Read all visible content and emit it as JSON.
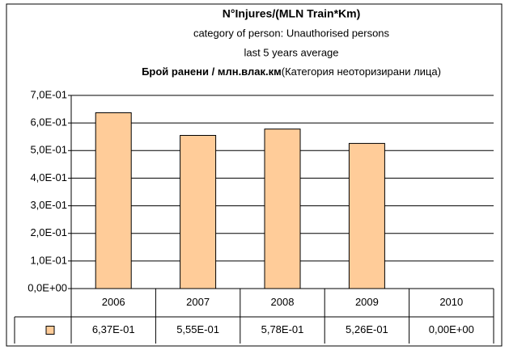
{
  "chart_data": {
    "type": "bar",
    "title": [
      "N°Injures/(MLN Train*Km)",
      "category of person: Unauthorised persons",
      "last 5 years average"
    ],
    "subtitle_bold": "Брой ранени / млн.влак.км",
    "subtitle": "(Категория неоторизирани лица)",
    "categories": [
      "2006",
      "2007",
      "2008",
      "2009",
      "2010"
    ],
    "values": [
      0.637,
      0.555,
      0.578,
      0.526,
      0
    ],
    "value_labels": [
      "6,37E-01",
      "5,55E-01",
      "5,78E-01",
      "5,26E-01",
      "0,00E+00"
    ],
    "color": "#ffcc99",
    "ylim": [
      0,
      0.7
    ],
    "yticks": [
      {
        "value": 0,
        "label": "0,0E+00"
      },
      {
        "value": 0.1,
        "label": "1,0E-01"
      },
      {
        "value": 0.2,
        "label": "2,0E-01"
      },
      {
        "value": 0.3,
        "label": "3,0E-01"
      },
      {
        "value": 0.4,
        "label": "4,0E-01"
      },
      {
        "value": 0.5,
        "label": "5,0E-01"
      },
      {
        "value": 0.6,
        "label": "6,0E-01"
      },
      {
        "value": 0.7,
        "label": "7,0E-01"
      }
    ],
    "grid": true
  }
}
